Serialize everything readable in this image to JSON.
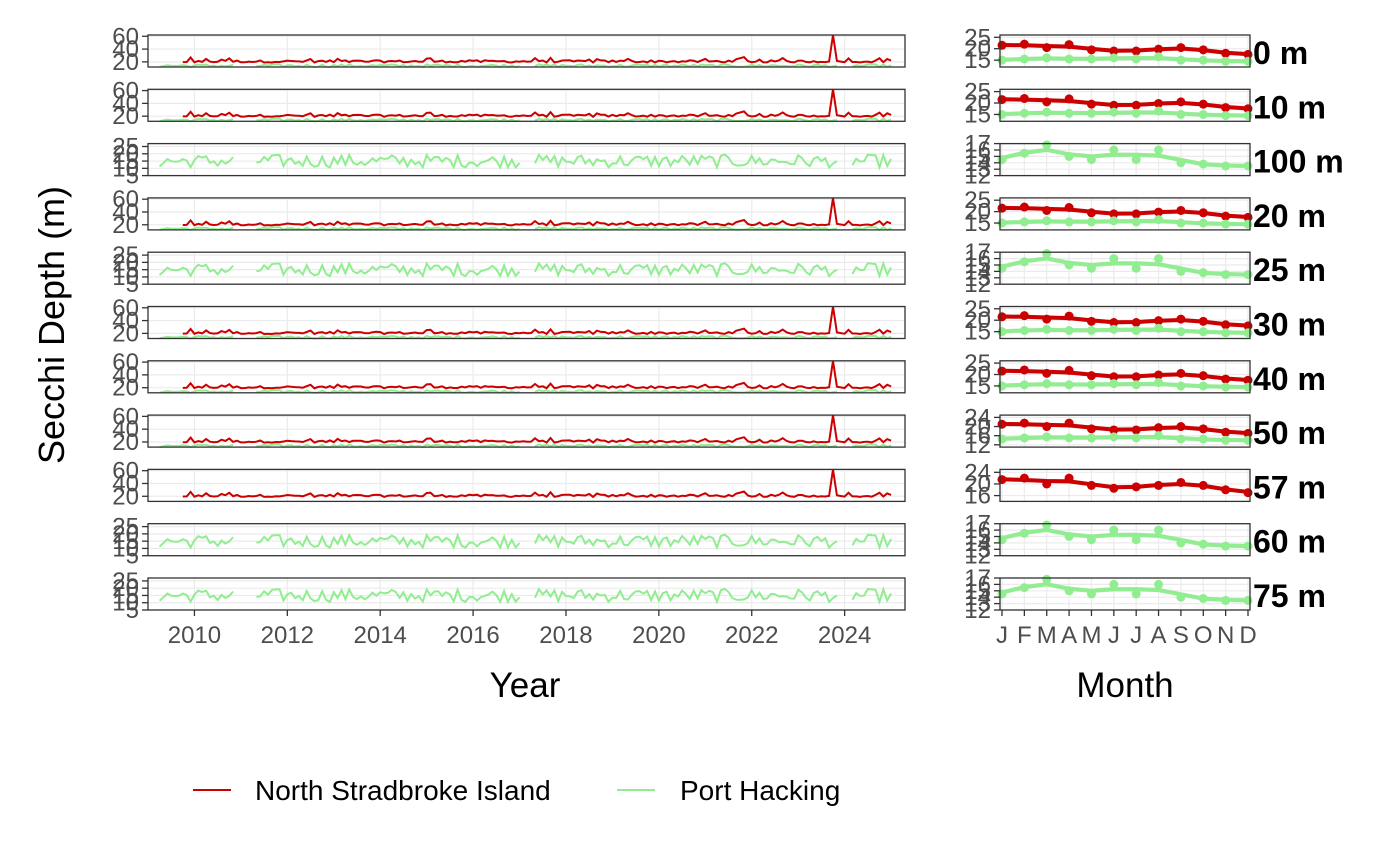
{
  "chart_data": {
    "type": "line",
    "y_axis_label": "Secchi Depth (m)",
    "left_panel": {
      "x_axis_label": "Year",
      "x_ticks": [
        "2010",
        "2012",
        "2014",
        "2016",
        "2018",
        "2020",
        "2022",
        "2024"
      ],
      "x_range": [
        2009.0,
        2025.3
      ]
    },
    "right_panel": {
      "x_axis_label": "Month",
      "x_ticks": [
        "J",
        "F",
        "M",
        "A",
        "M",
        "J",
        "J",
        "A",
        "S",
        "O",
        "N",
        "D"
      ]
    },
    "legend": {
      "position": "bottom",
      "entries": [
        {
          "name": "North Stradbroke Island",
          "color": "#cc0000"
        },
        {
          "name": "Port Hacking",
          "color": "#90ee90"
        }
      ]
    },
    "grid": true,
    "facets": [
      {
        "label": "0 m",
        "ts_ticks": [
          20,
          40,
          60
        ],
        "ts_ylim": [
          12,
          62
        ],
        "month_ticks": [
          15,
          20,
          25
        ],
        "month_ylim": [
          12,
          26
        ],
        "series": [
          "North Stradbroke Island",
          "Port Hacking"
        ],
        "monthly_means": {
          "North Stradbroke Island": [
            21.5,
            22.0,
            20.5,
            21.8,
            19.5,
            19.0,
            19.0,
            19.8,
            20.5,
            19.5,
            18.0,
            17.5
          ],
          "Port Hacking": [
            15.0,
            15.5,
            16.0,
            15.5,
            15.5,
            16.0,
            15.5,
            16.5,
            15.0,
            15.0,
            14.5,
            14.5
          ]
        }
      },
      {
        "label": "10 m",
        "ts_ticks": [
          20,
          40,
          60
        ],
        "ts_ylim": [
          12,
          62
        ],
        "month_ticks": [
          15,
          20,
          25
        ],
        "month_ylim": [
          12,
          26
        ],
        "series": [
          "North Stradbroke Island",
          "Port Hacking"
        ],
        "monthly_means": {
          "North Stradbroke Island": [
            21.5,
            22.0,
            20.5,
            21.8,
            19.5,
            19.0,
            19.0,
            19.8,
            20.5,
            19.5,
            18.0,
            17.5
          ],
          "Port Hacking": [
            15.0,
            15.5,
            16.0,
            15.5,
            15.5,
            16.0,
            15.5,
            16.5,
            15.0,
            15.0,
            14.5,
            14.5
          ]
        }
      },
      {
        "label": "100 m",
        "ts_ticks": [
          5,
          10,
          15,
          20,
          25
        ],
        "ts_ylim": [
          5,
          27
        ],
        "month_ticks": [
          12,
          13,
          14,
          15,
          16,
          17
        ],
        "month_ylim": [
          12,
          17
        ],
        "series": [
          "Port Hacking"
        ],
        "monthly_means": {
          "Port Hacking": [
            14.5,
            15.5,
            16.8,
            15.0,
            14.5,
            16.0,
            14.5,
            16.0,
            14.0,
            13.8,
            13.5,
            13.5
          ]
        }
      },
      {
        "label": "20 m",
        "ts_ticks": [
          20,
          40,
          60
        ],
        "ts_ylim": [
          12,
          62
        ],
        "month_ticks": [
          15,
          20,
          25
        ],
        "month_ylim": [
          12,
          26
        ],
        "series": [
          "North Stradbroke Island",
          "Port Hacking"
        ],
        "monthly_means": {
          "North Stradbroke Island": [
            21.5,
            22.0,
            20.5,
            21.8,
            19.5,
            19.0,
            19.0,
            19.8,
            20.5,
            19.5,
            18.0,
            17.5
          ],
          "Port Hacking": [
            15.0,
            15.5,
            16.0,
            15.5,
            15.5,
            16.0,
            15.5,
            16.5,
            15.0,
            15.0,
            14.5,
            14.5
          ]
        }
      },
      {
        "label": "25 m",
        "ts_ticks": [
          5,
          10,
          15,
          20,
          25
        ],
        "ts_ylim": [
          5,
          27
        ],
        "month_ticks": [
          12,
          13,
          14,
          15,
          16,
          17
        ],
        "month_ylim": [
          12,
          17
        ],
        "series": [
          "Port Hacking"
        ],
        "monthly_means": {
          "Port Hacking": [
            14.5,
            15.5,
            16.8,
            15.0,
            14.5,
            16.0,
            14.5,
            16.0,
            14.0,
            13.8,
            13.5,
            13.5
          ]
        }
      },
      {
        "label": "30 m",
        "ts_ticks": [
          20,
          40,
          60
        ],
        "ts_ylim": [
          12,
          62
        ],
        "month_ticks": [
          15,
          20,
          25
        ],
        "month_ylim": [
          12,
          26
        ],
        "series": [
          "North Stradbroke Island",
          "Port Hacking"
        ],
        "monthly_means": {
          "North Stradbroke Island": [
            21.5,
            22.0,
            20.5,
            21.8,
            19.5,
            19.0,
            19.0,
            19.8,
            20.5,
            19.5,
            18.0,
            17.5
          ],
          "Port Hacking": [
            15.0,
            15.5,
            16.0,
            15.5,
            15.5,
            16.0,
            15.5,
            16.5,
            15.0,
            15.0,
            14.5,
            14.5
          ]
        }
      },
      {
        "label": "40 m",
        "ts_ticks": [
          20,
          40,
          60
        ],
        "ts_ylim": [
          12,
          62
        ],
        "month_ticks": [
          15,
          20,
          25
        ],
        "month_ylim": [
          12,
          26
        ],
        "series": [
          "North Stradbroke Island",
          "Port Hacking"
        ],
        "monthly_means": {
          "North Stradbroke Island": [
            21.5,
            22.0,
            20.5,
            21.8,
            19.5,
            19.0,
            19.0,
            19.8,
            20.5,
            19.5,
            18.0,
            17.5
          ],
          "Port Hacking": [
            15.0,
            15.5,
            16.0,
            15.5,
            15.5,
            16.0,
            15.5,
            16.5,
            15.0,
            15.0,
            14.5,
            14.5
          ]
        }
      },
      {
        "label": "50 m",
        "ts_ticks": [
          20,
          40,
          60
        ],
        "ts_ylim": [
          12,
          62
        ],
        "month_ticks": [
          12,
          16,
          20,
          24
        ],
        "month_ylim": [
          11,
          25
        ],
        "series": [
          "North Stradbroke Island",
          "Port Hacking"
        ],
        "monthly_means": {
          "North Stradbroke Island": [
            21.0,
            21.5,
            20.0,
            21.5,
            19.0,
            18.5,
            18.5,
            19.5,
            20.0,
            19.0,
            17.5,
            17.0
          ],
          "Port Hacking": [
            14.5,
            15.0,
            15.5,
            15.0,
            15.0,
            15.5,
            15.0,
            16.0,
            14.5,
            14.5,
            14.0,
            14.0
          ]
        }
      },
      {
        "label": "57 m",
        "ts_ticks": [
          20,
          40,
          60
        ],
        "ts_ylim": [
          12,
          62
        ],
        "month_ticks": [
          16,
          20,
          24
        ],
        "month_ylim": [
          14,
          25
        ],
        "series": [
          "North Stradbroke Island"
        ],
        "monthly_means": {
          "North Stradbroke Island": [
            21.5,
            22.0,
            20.0,
            22.0,
            19.5,
            18.5,
            19.0,
            19.5,
            20.5,
            19.5,
            18.0,
            17.0
          ]
        }
      },
      {
        "label": "60 m",
        "ts_ticks": [
          5,
          10,
          15,
          20,
          25
        ],
        "ts_ylim": [
          5,
          27
        ],
        "month_ticks": [
          12,
          13,
          14,
          15,
          16,
          17
        ],
        "month_ylim": [
          12,
          17
        ],
        "series": [
          "Port Hacking"
        ],
        "monthly_means": {
          "Port Hacking": [
            14.5,
            15.5,
            16.8,
            15.0,
            14.5,
            16.0,
            14.5,
            16.0,
            14.0,
            13.8,
            13.5,
            13.5
          ]
        }
      },
      {
        "label": "75 m",
        "ts_ticks": [
          5,
          10,
          15,
          20,
          25
        ],
        "ts_ylim": [
          5,
          27
        ],
        "month_ticks": [
          12,
          13,
          14,
          15,
          16,
          17
        ],
        "month_ylim": [
          12,
          17
        ],
        "series": [
          "Port Hacking"
        ],
        "monthly_means": {
          "Port Hacking": [
            14.5,
            15.5,
            16.8,
            15.0,
            14.5,
            16.0,
            14.5,
            16.0,
            14.0,
            13.8,
            13.5,
            13.5
          ]
        }
      }
    ]
  }
}
